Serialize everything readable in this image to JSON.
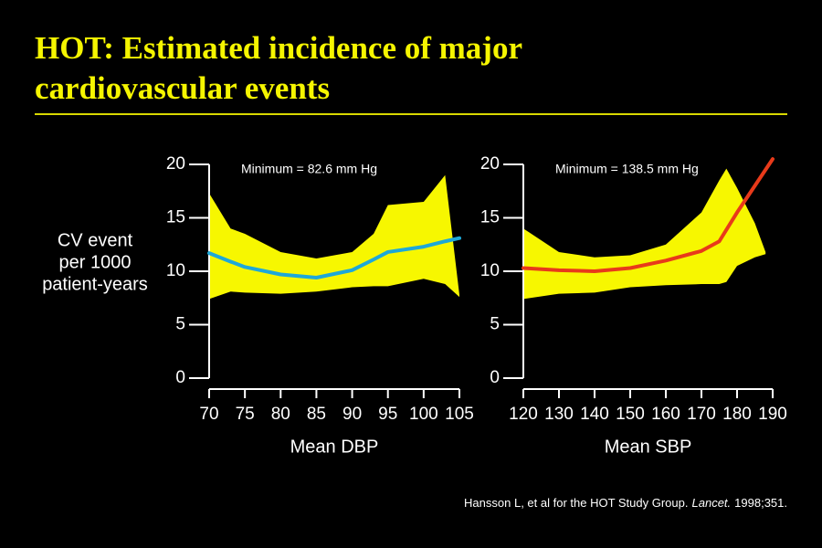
{
  "title": [
    "HOT: Estimated incidence of major",
    "cardiovascular events"
  ],
  "citation": [
    "Hansson L, et al for the HOT Study Group.",
    "Lancet.",
    "1998;351."
  ],
  "chart_data": [
    {
      "type": "line",
      "xlabel": "Mean DBP",
      "ylabel": [
        "CV event",
        "per 1000",
        "patient-years"
      ],
      "annotation": "Minimum = 82.6 mm Hg",
      "xlim": [
        70,
        105
      ],
      "xticks": [
        70,
        75,
        80,
        85,
        90,
        95,
        100,
        105
      ],
      "ylim": [
        0,
        20
      ],
      "yticks": [
        0,
        5,
        10,
        15,
        20
      ],
      "x": [
        70,
        73,
        75,
        80,
        85,
        90,
        93,
        95,
        100,
        103,
        105
      ],
      "series": [
        {
          "color": "#1ea8d8",
          "values": [
            11.7,
            10.9,
            10.4,
            9.7,
            9.4,
            10.1,
            11.1,
            11.8,
            12.3,
            12.8,
            13.1
          ]
        }
      ],
      "band": {
        "color": "#f7f700",
        "x": [
          70,
          73,
          75,
          80,
          85,
          90,
          93,
          95,
          100,
          103,
          105
        ],
        "upper": [
          17.3,
          14.0,
          13.5,
          11.8,
          11.2,
          11.8,
          13.5,
          16.2,
          16.5,
          19.0,
          7.8
        ],
        "lower": [
          7.4,
          8.1,
          8.0,
          7.9,
          8.1,
          8.5,
          8.6,
          8.6,
          9.3,
          8.8,
          7.6
        ]
      }
    },
    {
      "type": "line",
      "xlabel": "Mean SBP",
      "annotation": "Minimum = 138.5 mm Hg",
      "xlim": [
        120,
        190
      ],
      "xticks": [
        120,
        130,
        140,
        150,
        160,
        170,
        180,
        190
      ],
      "ylim": [
        0,
        20
      ],
      "yticks": [
        0,
        5,
        10,
        15,
        20
      ],
      "x": [
        120,
        130,
        140,
        150,
        160,
        170,
        175,
        180,
        185,
        190
      ],
      "series": [
        {
          "color": "#e83a1a",
          "values": [
            10.3,
            10.1,
            10.0,
            10.3,
            11.0,
            11.9,
            12.8,
            15.5,
            18.0,
            20.5
          ]
        }
      ],
      "band": {
        "color": "#f7f700",
        "x": [
          120,
          130,
          140,
          150,
          160,
          170,
          175,
          177,
          180,
          185,
          188
        ],
        "upper": [
          14.0,
          11.8,
          11.3,
          11.5,
          12.5,
          15.5,
          18.5,
          19.6,
          17.8,
          14.5,
          11.8
        ],
        "lower": [
          7.4,
          7.9,
          8.0,
          8.5,
          8.7,
          8.8,
          8.8,
          9.0,
          10.5,
          11.3,
          11.6
        ]
      }
    }
  ]
}
